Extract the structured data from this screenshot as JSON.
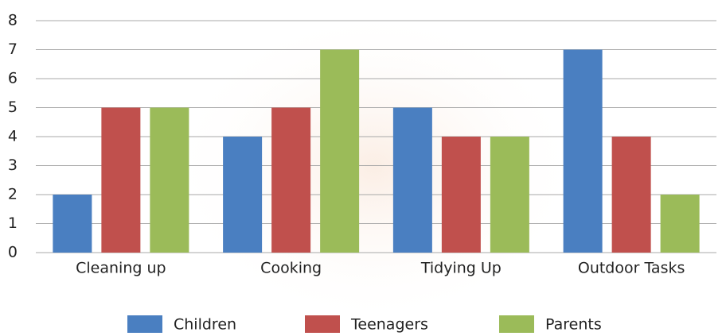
{
  "chart_data": {
    "type": "bar",
    "categories": [
      "Cleaning up",
      "Cooking",
      "Tidying Up",
      "Outdoor Tasks"
    ],
    "series": [
      {
        "name": "Children",
        "color": "#4a7fc1",
        "values": [
          2,
          4,
          5,
          7
        ]
      },
      {
        "name": "Teenagers",
        "color": "#c0504d",
        "values": [
          5,
          5,
          4,
          4
        ]
      },
      {
        "name": "Parents",
        "color": "#9bbb59",
        "values": [
          5,
          7,
          4,
          2
        ]
      }
    ],
    "ylim": [
      0,
      8
    ],
    "yticks": [
      0,
      1,
      2,
      3,
      4,
      5,
      6,
      7,
      8
    ],
    "grid": true,
    "legend": "bottom"
  }
}
